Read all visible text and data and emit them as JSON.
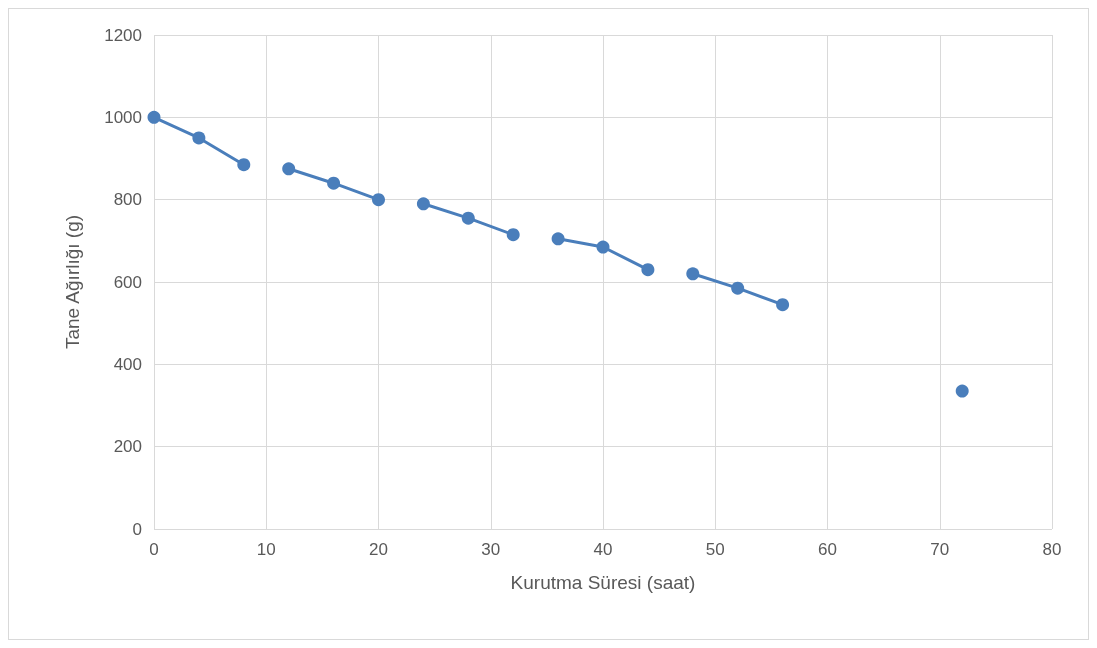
{
  "chart_data": {
    "type": "line",
    "xlabel": "Kurutma Süresi (saat)",
    "ylabel": "Tane Ağırlığı (g)",
    "xlim": [
      0,
      80
    ],
    "xticks": [
      0,
      10,
      20,
      30,
      40,
      50,
      60,
      70,
      80
    ],
    "ylim": [
      0,
      1200
    ],
    "yticks": [
      0,
      200,
      400,
      600,
      800,
      1000,
      1200
    ],
    "grid": true,
    "marker": "circle",
    "line_style": "solid",
    "series": [
      {
        "color": "#4a7ebb",
        "x": [
          0,
          4,
          8
        ],
        "values": [
          1000,
          950,
          885
        ]
      },
      {
        "color": "#4a7ebb",
        "x": [
          12,
          16,
          20
        ],
        "values": [
          875,
          840,
          800
        ]
      },
      {
        "color": "#4a7ebb",
        "x": [
          24,
          28,
          32
        ],
        "values": [
          790,
          755,
          715
        ]
      },
      {
        "color": "#4a7ebb",
        "x": [
          36,
          40,
          44
        ],
        "values": [
          705,
          685,
          630
        ]
      },
      {
        "color": "#4a7ebb",
        "x": [
          48,
          52,
          56
        ],
        "values": [
          620,
          585,
          545
        ]
      },
      {
        "color": "#4a7ebb",
        "x": [
          72
        ],
        "values": [
          335
        ]
      }
    ]
  }
}
